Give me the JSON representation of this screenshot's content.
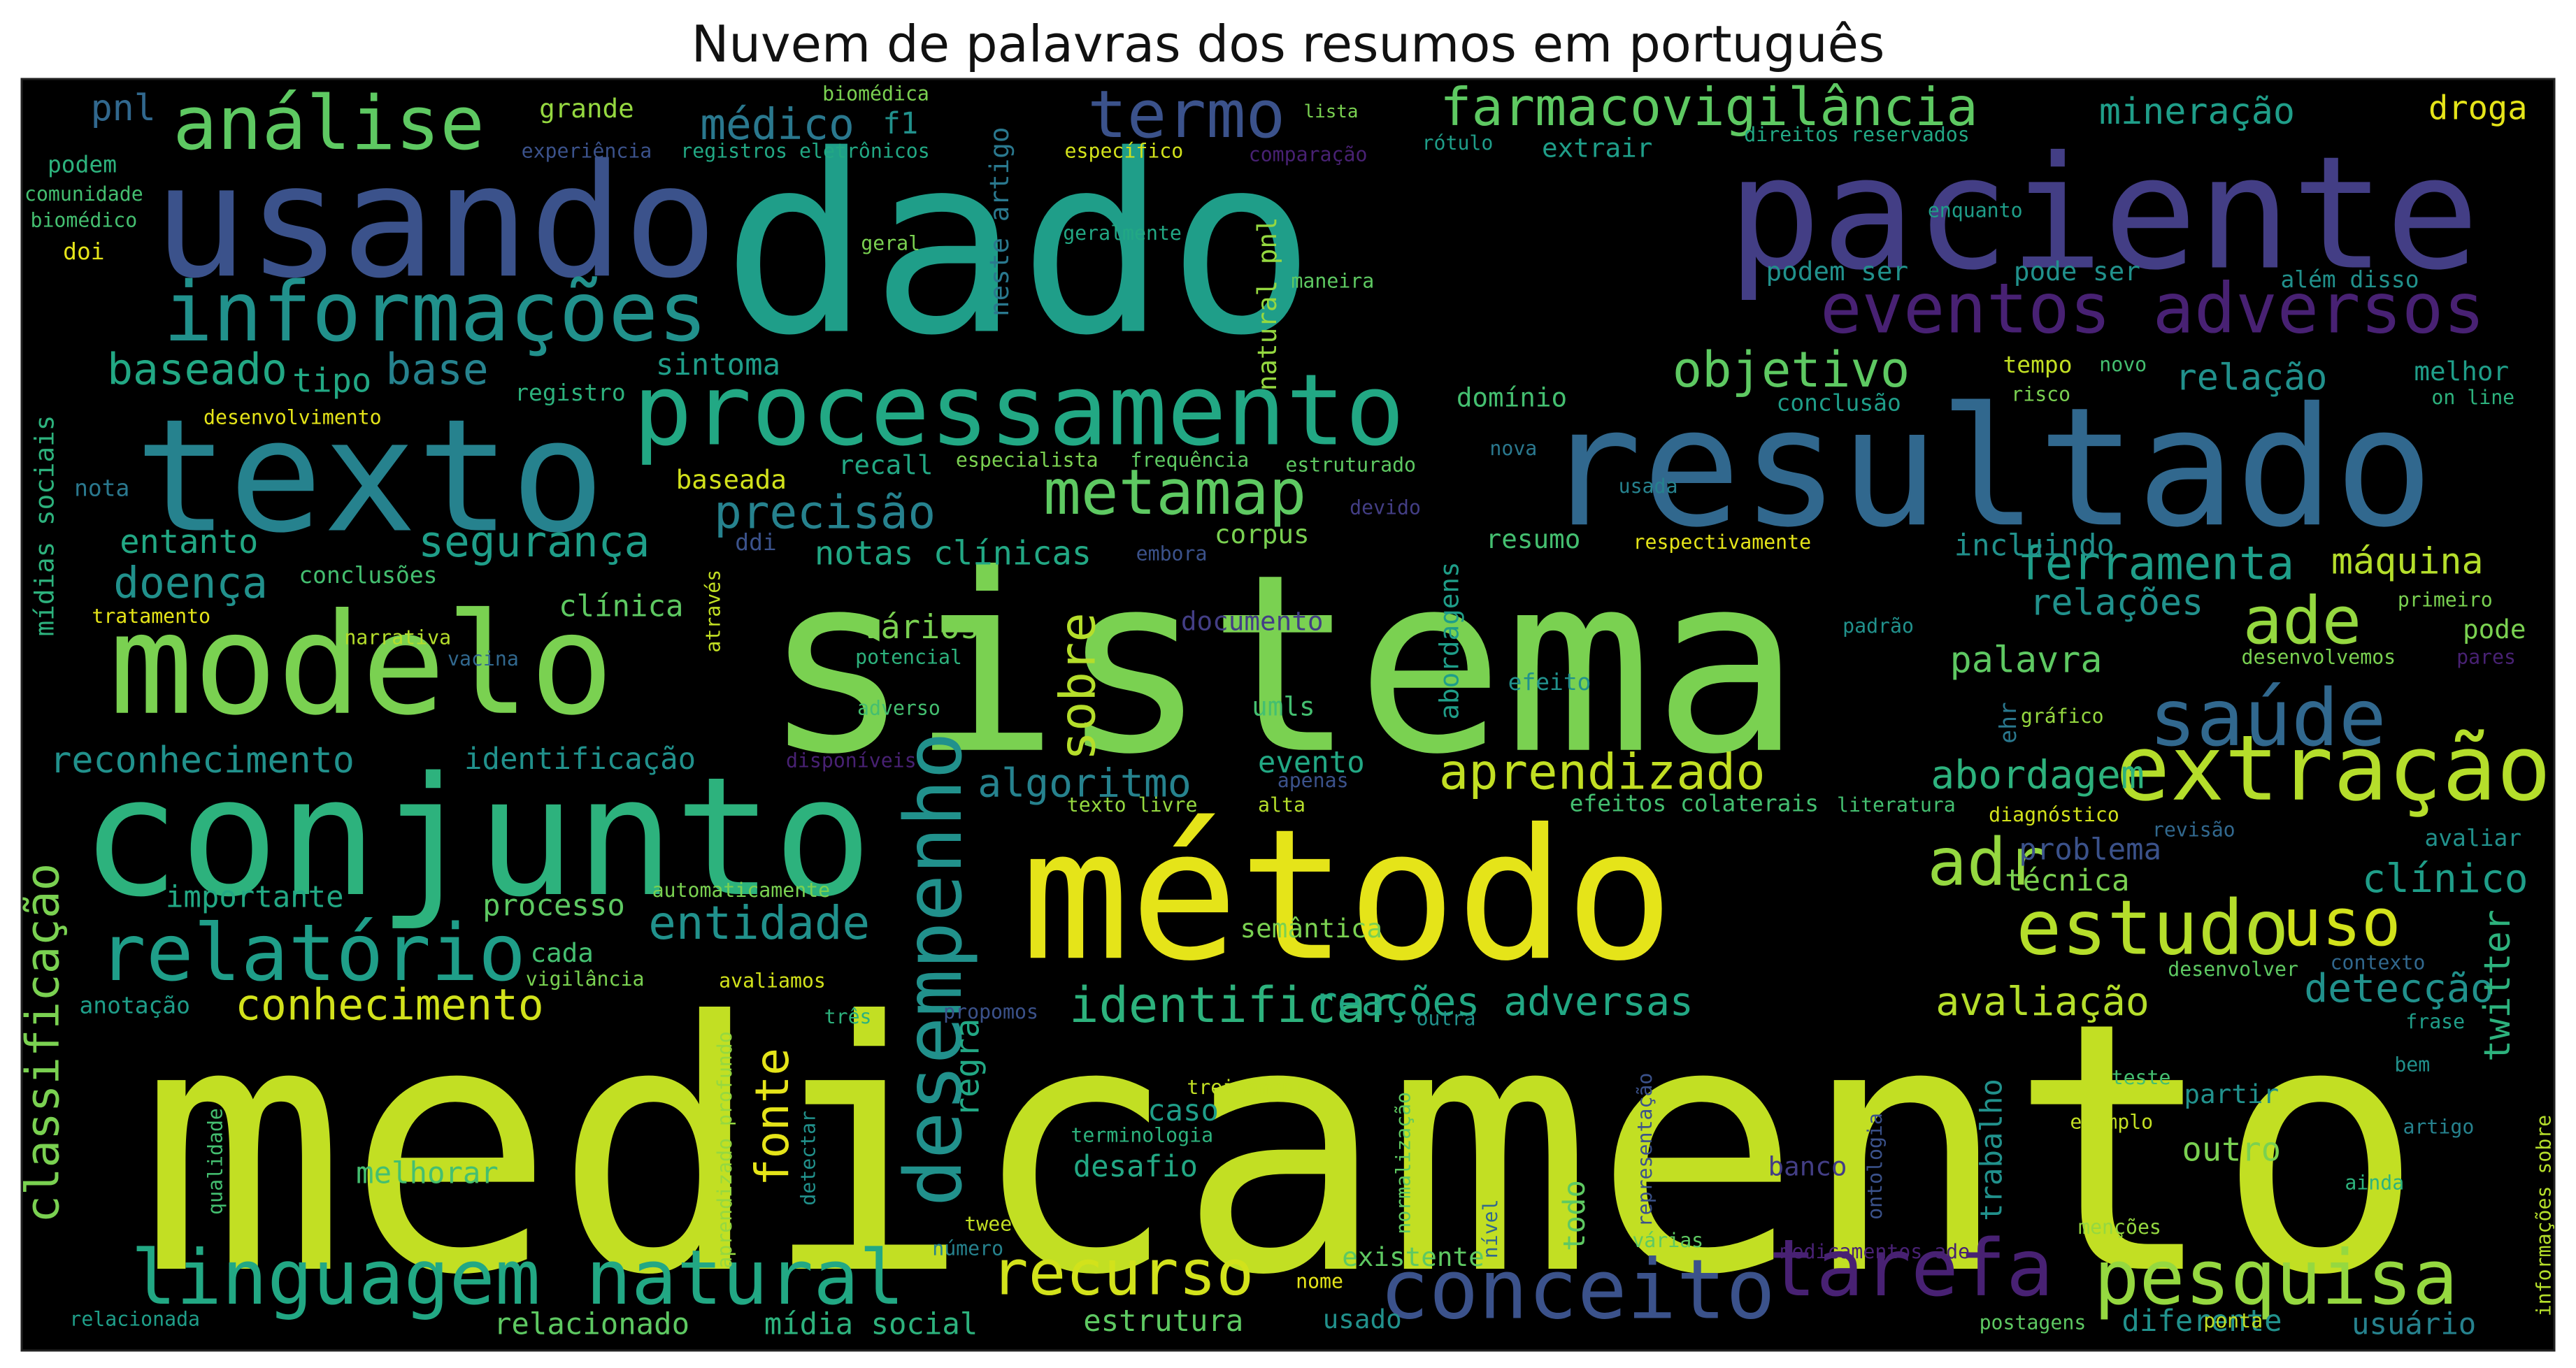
{
  "chart_data": {
    "type": "wordcloud",
    "title": "Nuvem de palavras dos resumos em português",
    "background": "#000000",
    "colormap": "viridis",
    "words": [
      {
        "text": "medicamento",
        "weight": 1.0
      },
      {
        "text": "sistema",
        "weight": 0.78
      },
      {
        "text": "dado",
        "weight": 0.74
      },
      {
        "text": "método",
        "weight": 0.6
      },
      {
        "text": "paciente",
        "weight": 0.55
      },
      {
        "text": "resultado",
        "weight": 0.54
      },
      {
        "text": "conjunto",
        "weight": 0.5
      },
      {
        "text": "usando",
        "weight": 0.5
      },
      {
        "text": "modelo",
        "weight": 0.48
      },
      {
        "text": "texto",
        "weight": 0.48
      },
      {
        "text": "processamento",
        "weight": 0.34
      },
      {
        "text": "informações",
        "weight": 0.3
      },
      {
        "text": "extração",
        "weight": 0.29
      },
      {
        "text": "linguagem natural",
        "weight": 0.28
      },
      {
        "text": "conceito",
        "weight": 0.27
      },
      {
        "text": "desempenho",
        "weight": 0.26
      },
      {
        "text": "estudo",
        "weight": 0.26
      },
      {
        "text": "análise",
        "weight": 0.26
      },
      {
        "text": "relatório",
        "weight": 0.26
      },
      {
        "text": "tarefa",
        "weight": 0.26
      },
      {
        "text": "pesquisa",
        "weight": 0.25
      },
      {
        "text": "saúde",
        "weight": 0.24
      },
      {
        "text": "eventos adversos",
        "weight": 0.23
      },
      {
        "text": "termo",
        "weight": 0.22
      },
      {
        "text": "ade",
        "weight": 0.22
      },
      {
        "text": "recurso",
        "weight": 0.21
      },
      {
        "text": "metamap",
        "weight": 0.21
      },
      {
        "text": "adr",
        "weight": 0.2
      },
      {
        "text": "uso",
        "weight": 0.2
      },
      {
        "text": "farmacovigilância",
        "weight": 0.17
      },
      {
        "text": "objetivo",
        "weight": 0.16
      },
      {
        "text": "aprendizado",
        "weight": 0.16
      },
      {
        "text": "identificar",
        "weight": 0.16
      },
      {
        "text": "precisão",
        "weight": 0.16
      },
      {
        "text": "conhecimento",
        "weight": 0.16
      },
      {
        "text": "doença",
        "weight": 0.16
      },
      {
        "text": "reconhecimento",
        "weight": 0.14
      },
      {
        "text": "ferramenta",
        "weight": 0.15
      },
      {
        "text": "entidade",
        "weight": 0.15
      },
      {
        "text": "baseado",
        "weight": 0.15
      },
      {
        "text": "base",
        "weight": 0.15
      },
      {
        "text": "segurança",
        "weight": 0.15
      },
      {
        "text": "classificação",
        "weight": 0.15
      },
      {
        "text": "sobre",
        "weight": 0.15
      },
      {
        "text": "médico",
        "weight": 0.14
      },
      {
        "text": "algoritmo",
        "weight": 0.14
      },
      {
        "text": "reações adversas",
        "weight": 0.14
      },
      {
        "text": "avaliação",
        "weight": 0.14
      },
      {
        "text": "detecção",
        "weight": 0.14
      },
      {
        "text": "clínico",
        "weight": 0.14
      },
      {
        "text": "abordagem",
        "weight": 0.14
      },
      {
        "text": "relação",
        "weight": 0.13
      },
      {
        "text": "mineração",
        "weight": 0.13
      },
      {
        "text": "máquina",
        "weight": 0.13
      },
      {
        "text": "fonte",
        "weight": 0.13
      },
      {
        "text": "droga",
        "weight": 0.12
      },
      {
        "text": "relações",
        "weight": 0.12
      },
      {
        "text": "palavra",
        "weight": 0.12
      },
      {
        "text": "pnl",
        "weight": 0.12
      },
      {
        "text": "entanto",
        "weight": 0.12
      },
      {
        "text": "tipo",
        "weight": 0.12
      },
      {
        "text": "notas clínicas",
        "weight": 0.12
      },
      {
        "text": "sintoma",
        "weight": 0.11
      },
      {
        "text": "vários",
        "weight": 0.11
      },
      {
        "text": "importante",
        "weight": 0.11
      },
      {
        "text": "evento",
        "weight": 0.11
      },
      {
        "text": "processo",
        "weight": 0.11
      },
      {
        "text": "melhorar",
        "weight": 0.11
      },
      {
        "text": "desafio",
        "weight": 0.11
      },
      {
        "text": "outro",
        "weight": 0.11
      },
      {
        "text": "twitter",
        "weight": 0.11
      },
      {
        "text": "estrutura",
        "weight": 0.11
      },
      {
        "text": "relacionado",
        "weight": 0.11
      },
      {
        "text": "mídia social",
        "weight": 0.11
      },
      {
        "text": "usuário",
        "weight": 0.11
      },
      {
        "text": "diferente",
        "weight": 0.11
      },
      {
        "text": "técnica",
        "weight": 0.11
      },
      {
        "text": "problema",
        "weight": 0.11
      },
      {
        "text": "incluindo",
        "weight": 0.11
      },
      {
        "text": "regra",
        "weight": 0.11
      },
      {
        "text": "trabalho",
        "weight": 0.11
      },
      {
        "text": "identificação",
        "weight": 0.1
      },
      {
        "text": "corpus",
        "weight": 0.1
      },
      {
        "text": "resumo",
        "weight": 0.1
      },
      {
        "text": "clínica",
        "weight": 0.1
      },
      {
        "text": "mídias sociais",
        "weight": 0.1
      },
      {
        "text": "neste artigo",
        "weight": 0.1
      },
      {
        "text": "natural pnl",
        "weight": 0.1
      },
      {
        "text": "abordagens",
        "weight": 0.1
      },
      {
        "text": "todo",
        "weight": 0.1
      },
      {
        "text": "caso",
        "weight": 0.1
      },
      {
        "text": "baseada",
        "weight": 0.09
      },
      {
        "text": "recall",
        "weight": 0.09
      },
      {
        "text": "f1",
        "weight": 0.09
      },
      {
        "text": "grande",
        "weight": 0.09
      },
      {
        "text": "extrair",
        "weight": 0.09
      },
      {
        "text": "podem ser",
        "weight": 0.09
      },
      {
        "text": "pode ser",
        "weight": 0.09
      },
      {
        "text": "melhor",
        "weight": 0.09
      },
      {
        "text": "domínio",
        "weight": 0.09
      },
      {
        "text": "documento",
        "weight": 0.09
      },
      {
        "text": "umls",
        "weight": 0.09
      },
      {
        "text": "cada",
        "weight": 0.09
      },
      {
        "text": "semântica",
        "weight": 0.09
      },
      {
        "text": "banco",
        "weight": 0.09
      },
      {
        "text": "existente",
        "weight": 0.09
      },
      {
        "text": "usado",
        "weight": 0.09
      },
      {
        "text": "pode",
        "weight": 0.09
      },
      {
        "text": "partir",
        "weight": 0.09
      },
      {
        "text": "anotação",
        "weight": 0.09
      },
      {
        "text": "conclusões",
        "weight": 0.09
      },
      {
        "text": "podem",
        "weight": 0.08
      },
      {
        "text": "nota",
        "weight": 0.08
      },
      {
        "text": "efeitos colaterais",
        "weight": 0.08
      },
      {
        "text": "efeito",
        "weight": 0.08
      },
      {
        "text": "tempo",
        "weight": 0.08
      },
      {
        "text": "registro",
        "weight": 0.08
      },
      {
        "text": "conclusão",
        "weight": 0.08
      },
      {
        "text": "além disso",
        "weight": 0.08
      },
      {
        "text": "enquanto",
        "weight": 0.08
      },
      {
        "text": "específico",
        "weight": 0.07
      },
      {
        "text": "ehr",
        "weight": 0.07
      },
      {
        "text": "ddi",
        "weight": 0.07
      },
      {
        "text": "menções",
        "weight": 0.07
      },
      {
        "text": "lista",
        "weight": 0.06
      },
      {
        "text": "doi",
        "weight": 0.07
      },
      {
        "text": "avaliar",
        "weight": 0.07
      },
      {
        "text": "exemplo",
        "weight": 0.07
      },
      {
        "text": "tweet",
        "weight": 0.07
      },
      {
        "text": "ainda",
        "weight": 0.07
      },
      {
        "text": "risco",
        "weight": 0.06
      },
      {
        "text": "novo",
        "weight": 0.06
      },
      {
        "text": "on line",
        "weight": 0.06
      },
      {
        "text": "usada",
        "weight": 0.06
      },
      {
        "text": "respectivamente",
        "weight": 0.06
      },
      {
        "text": "embora",
        "weight": 0.06
      },
      {
        "text": "devido",
        "weight": 0.06
      },
      {
        "text": "padrão",
        "weight": 0.06
      },
      {
        "text": "primeiro",
        "weight": 0.06
      },
      {
        "text": "desenvolvemos",
        "weight": 0.06
      },
      {
        "text": "pares",
        "weight": 0.06
      },
      {
        "text": "gráfico",
        "weight": 0.06
      },
      {
        "text": "potencial",
        "weight": 0.06
      },
      {
        "text": "adverso",
        "weight": 0.06
      },
      {
        "text": "disponíveis",
        "weight": 0.06
      },
      {
        "text": "texto livre",
        "weight": 0.06
      },
      {
        "text": "alta",
        "weight": 0.06
      },
      {
        "text": "apenas",
        "weight": 0.06
      },
      {
        "text": "literatura",
        "weight": 0.06
      },
      {
        "text": "diagnóstico",
        "weight": 0.06
      },
      {
        "text": "revisão",
        "weight": 0.06
      },
      {
        "text": "contexto",
        "weight": 0.06
      },
      {
        "text": "desenvolver",
        "weight": 0.06
      },
      {
        "text": "frase",
        "weight": 0.06
      },
      {
        "text": "bem",
        "weight": 0.06
      },
      {
        "text": "teste",
        "weight": 0.06
      },
      {
        "text": "artigo",
        "weight": 0.06
      },
      {
        "text": "ontologia",
        "weight": 0.06
      },
      {
        "text": "representação",
        "weight": 0.06
      },
      {
        "text": "nível",
        "weight": 0.06
      },
      {
        "text": "várias",
        "weight": 0.06
      },
      {
        "text": "normalização",
        "weight": 0.06
      },
      {
        "text": "terminologia",
        "weight": 0.06
      },
      {
        "text": "treinamento",
        "weight": 0.06
      },
      {
        "text": "detectar",
        "weight": 0.06
      },
      {
        "text": "aprendizado profundo",
        "weight": 0.06
      },
      {
        "text": "qualidade",
        "weight": 0.05
      },
      {
        "text": "número",
        "weight": 0.06
      },
      {
        "text": "nome",
        "weight": 0.06
      },
      {
        "text": "postagens",
        "weight": 0.06
      },
      {
        "text": "ponta",
        "weight": 0.06
      },
      {
        "text": "medicamentos ade",
        "weight": 0.05
      },
      {
        "text": "informações sobre",
        "weight": 0.05
      },
      {
        "text": "relacionada",
        "weight": 0.05
      },
      {
        "text": "automaticamente",
        "weight": 0.06
      },
      {
        "text": "vigilância",
        "weight": 0.06
      },
      {
        "text": "avaliamos",
        "weight": 0.06
      },
      {
        "text": "três",
        "weight": 0.06
      },
      {
        "text": "propomos",
        "weight": 0.06
      },
      {
        "text": "outra",
        "weight": 0.06
      },
      {
        "text": "através",
        "weight": 0.06
      },
      {
        "text": "tratamento",
        "weight": 0.06
      },
      {
        "text": "narrativa",
        "weight": 0.06
      },
      {
        "text": "vacina",
        "weight": 0.05
      },
      {
        "text": "desenvolvimento",
        "weight": 0.06
      },
      {
        "text": "especialista",
        "weight": 0.06
      },
      {
        "text": "frequência",
        "weight": 0.06
      },
      {
        "text": "estruturado",
        "weight": 0.06
      },
      {
        "text": "nova",
        "weight": 0.06
      },
      {
        "text": "experiência",
        "weight": 0.06
      },
      {
        "text": "registros eletrônicos",
        "weight": 0.06
      },
      {
        "text": "comparação",
        "weight": 0.06
      },
      {
        "text": "rótulo",
        "weight": 0.06
      },
      {
        "text": "direitos reservados",
        "weight": 0.06
      },
      {
        "text": "biomédica",
        "weight": 0.06
      },
      {
        "text": "comunidade",
        "weight": 0.06
      },
      {
        "text": "biomédico",
        "weight": 0.06
      },
      {
        "text": "geral",
        "weight": 0.06
      },
      {
        "text": "geralmente",
        "weight": 0.06
      },
      {
        "text": "maneira",
        "weight": 0.06
      }
    ]
  }
}
